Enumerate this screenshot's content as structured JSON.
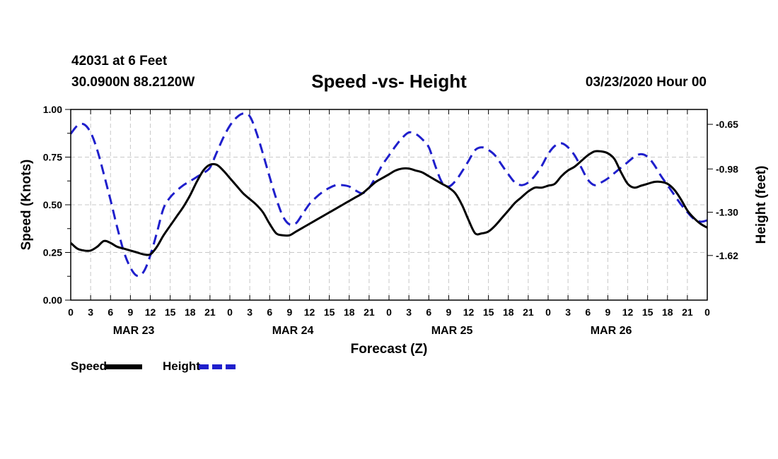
{
  "header": {
    "station": "42031 at 6 Feet",
    "coordinates": "30.0900N 88.2120W",
    "title": "Speed -vs- Height",
    "datetime": "03/23/2020 Hour 00"
  },
  "legend": {
    "speed_label": "Speed",
    "height_label": "Height"
  },
  "chart_data": {
    "type": "line",
    "title": "Speed -vs- Height",
    "xlabel": "Forecast (Z)",
    "ylabel": "Speed (Knots)",
    "y2label": "Height (feet)",
    "x_unit": "forecast hour",
    "xlim": [
      0,
      96
    ],
    "ylim": [
      0,
      1
    ],
    "y2lim": [
      -1.95,
      -0.54
    ],
    "y_ticks": [
      "0.00",
      "0.25",
      "0.50",
      "0.75",
      "1.00"
    ],
    "y2_ticks": [
      "-0.65",
      "-0.98",
      "-1.30",
      "-1.62"
    ],
    "x_ticks": [
      "0",
      "3",
      "6",
      "9",
      "12",
      "15",
      "18",
      "21",
      "0",
      "3",
      "6",
      "9",
      "12",
      "15",
      "18",
      "21",
      "0",
      "3",
      "6",
      "9",
      "12",
      "15",
      "18",
      "21",
      "0",
      "3",
      "6",
      "9",
      "12",
      "15",
      "18",
      "21",
      "0"
    ],
    "day_labels": [
      {
        "label": "MAR 23",
        "hour": 9.5
      },
      {
        "label": "MAR 24",
        "hour": 33.5
      },
      {
        "label": "MAR 25",
        "hour": 57.5
      },
      {
        "label": "MAR 26",
        "hour": 81.5
      }
    ],
    "grid": true,
    "legend_position": "bottom-left",
    "series": [
      {
        "name": "Speed",
        "axis": "left",
        "color": "#000000",
        "style": "solid",
        "x": [
          0,
          1,
          2,
          3,
          4,
          5,
          6,
          7,
          8,
          9,
          10,
          11,
          12,
          13,
          14,
          15,
          16,
          17,
          18,
          19,
          20,
          21,
          22,
          23,
          24,
          25,
          26,
          27,
          28,
          29,
          30,
          31,
          32,
          33,
          34,
          35,
          36,
          37,
          38,
          39,
          40,
          41,
          42,
          43,
          44,
          45,
          46,
          47,
          48,
          49,
          50,
          51,
          52,
          53,
          54,
          55,
          56,
          57,
          58,
          59,
          60,
          61,
          62,
          63,
          64,
          65,
          66,
          67,
          68,
          69,
          70,
          71,
          72,
          73,
          74,
          75,
          76,
          77,
          78,
          79,
          80,
          81,
          82,
          83,
          84,
          85,
          86,
          87,
          88,
          89,
          90,
          91,
          92,
          93,
          94,
          95,
          96
        ],
        "values": [
          0.3,
          0.27,
          0.26,
          0.26,
          0.28,
          0.31,
          0.3,
          0.28,
          0.27,
          0.26,
          0.25,
          0.24,
          0.24,
          0.28,
          0.34,
          0.39,
          0.44,
          0.49,
          0.55,
          0.62,
          0.68,
          0.71,
          0.71,
          0.68,
          0.64,
          0.6,
          0.56,
          0.53,
          0.5,
          0.46,
          0.4,
          0.35,
          0.34,
          0.34,
          0.36,
          0.38,
          0.4,
          0.42,
          0.44,
          0.46,
          0.48,
          0.5,
          0.52,
          0.54,
          0.56,
          0.59,
          0.62,
          0.64,
          0.66,
          0.68,
          0.69,
          0.69,
          0.68,
          0.67,
          0.65,
          0.63,
          0.61,
          0.59,
          0.56,
          0.5,
          0.42,
          0.35,
          0.35,
          0.36,
          0.39,
          0.43,
          0.47,
          0.51,
          0.54,
          0.57,
          0.59,
          0.59,
          0.6,
          0.61,
          0.65,
          0.68,
          0.7,
          0.73,
          0.76,
          0.78,
          0.78,
          0.77,
          0.74,
          0.67,
          0.61,
          0.59,
          0.6,
          0.61,
          0.62,
          0.62,
          0.61,
          0.58,
          0.53,
          0.47,
          0.43,
          0.4,
          0.38
        ]
      },
      {
        "name": "Height",
        "axis": "right",
        "color": "#1f1fcc",
        "style": "dashed",
        "x": [
          0,
          1,
          2,
          3,
          4,
          5,
          6,
          7,
          8,
          9,
          10,
          11,
          12,
          13,
          14,
          15,
          16,
          17,
          18,
          19,
          20,
          21,
          22,
          23,
          24,
          25,
          26,
          27,
          28,
          29,
          30,
          31,
          32,
          33,
          34,
          35,
          36,
          37,
          38,
          39,
          40,
          41,
          42,
          43,
          44,
          45,
          46,
          47,
          48,
          49,
          50,
          51,
          52,
          53,
          54,
          55,
          56,
          57,
          58,
          59,
          60,
          61,
          62,
          63,
          64,
          65,
          66,
          67,
          68,
          69,
          70,
          71,
          72,
          73,
          74,
          75,
          76,
          77,
          78,
          79,
          80,
          81,
          82,
          83,
          84,
          85,
          86,
          87,
          88,
          89,
          90,
          91,
          92,
          93,
          94,
          95,
          96
        ],
        "values": [
          -0.72,
          -0.66,
          -0.65,
          -0.71,
          -0.84,
          -1.02,
          -1.21,
          -1.41,
          -1.59,
          -1.71,
          -1.77,
          -1.74,
          -1.62,
          -1.45,
          -1.27,
          -1.19,
          -1.14,
          -1.1,
          -1.07,
          -1.04,
          -1.01,
          -0.97,
          -0.86,
          -0.75,
          -0.66,
          -0.6,
          -0.57,
          -0.59,
          -0.71,
          -0.87,
          -1.04,
          -1.2,
          -1.33,
          -1.39,
          -1.38,
          -1.31,
          -1.24,
          -1.19,
          -1.15,
          -1.12,
          -1.1,
          -1.1,
          -1.11,
          -1.14,
          -1.16,
          -1.12,
          -1.04,
          -0.95,
          -0.88,
          -0.81,
          -0.75,
          -0.71,
          -0.72,
          -0.76,
          -0.82,
          -0.96,
          -1.08,
          -1.11,
          -1.07,
          -1.0,
          -0.92,
          -0.84,
          -0.82,
          -0.84,
          -0.88,
          -0.95,
          -1.02,
          -1.08,
          -1.1,
          -1.08,
          -1.03,
          -0.96,
          -0.87,
          -0.81,
          -0.79,
          -0.82,
          -0.88,
          -0.97,
          -1.06,
          -1.1,
          -1.08,
          -1.05,
          -1.01,
          -0.97,
          -0.93,
          -0.89,
          -0.87,
          -0.89,
          -0.95,
          -1.03,
          -1.1,
          -1.17,
          -1.24,
          -1.3,
          -1.35,
          -1.37,
          -1.36
        ]
      }
    ]
  }
}
